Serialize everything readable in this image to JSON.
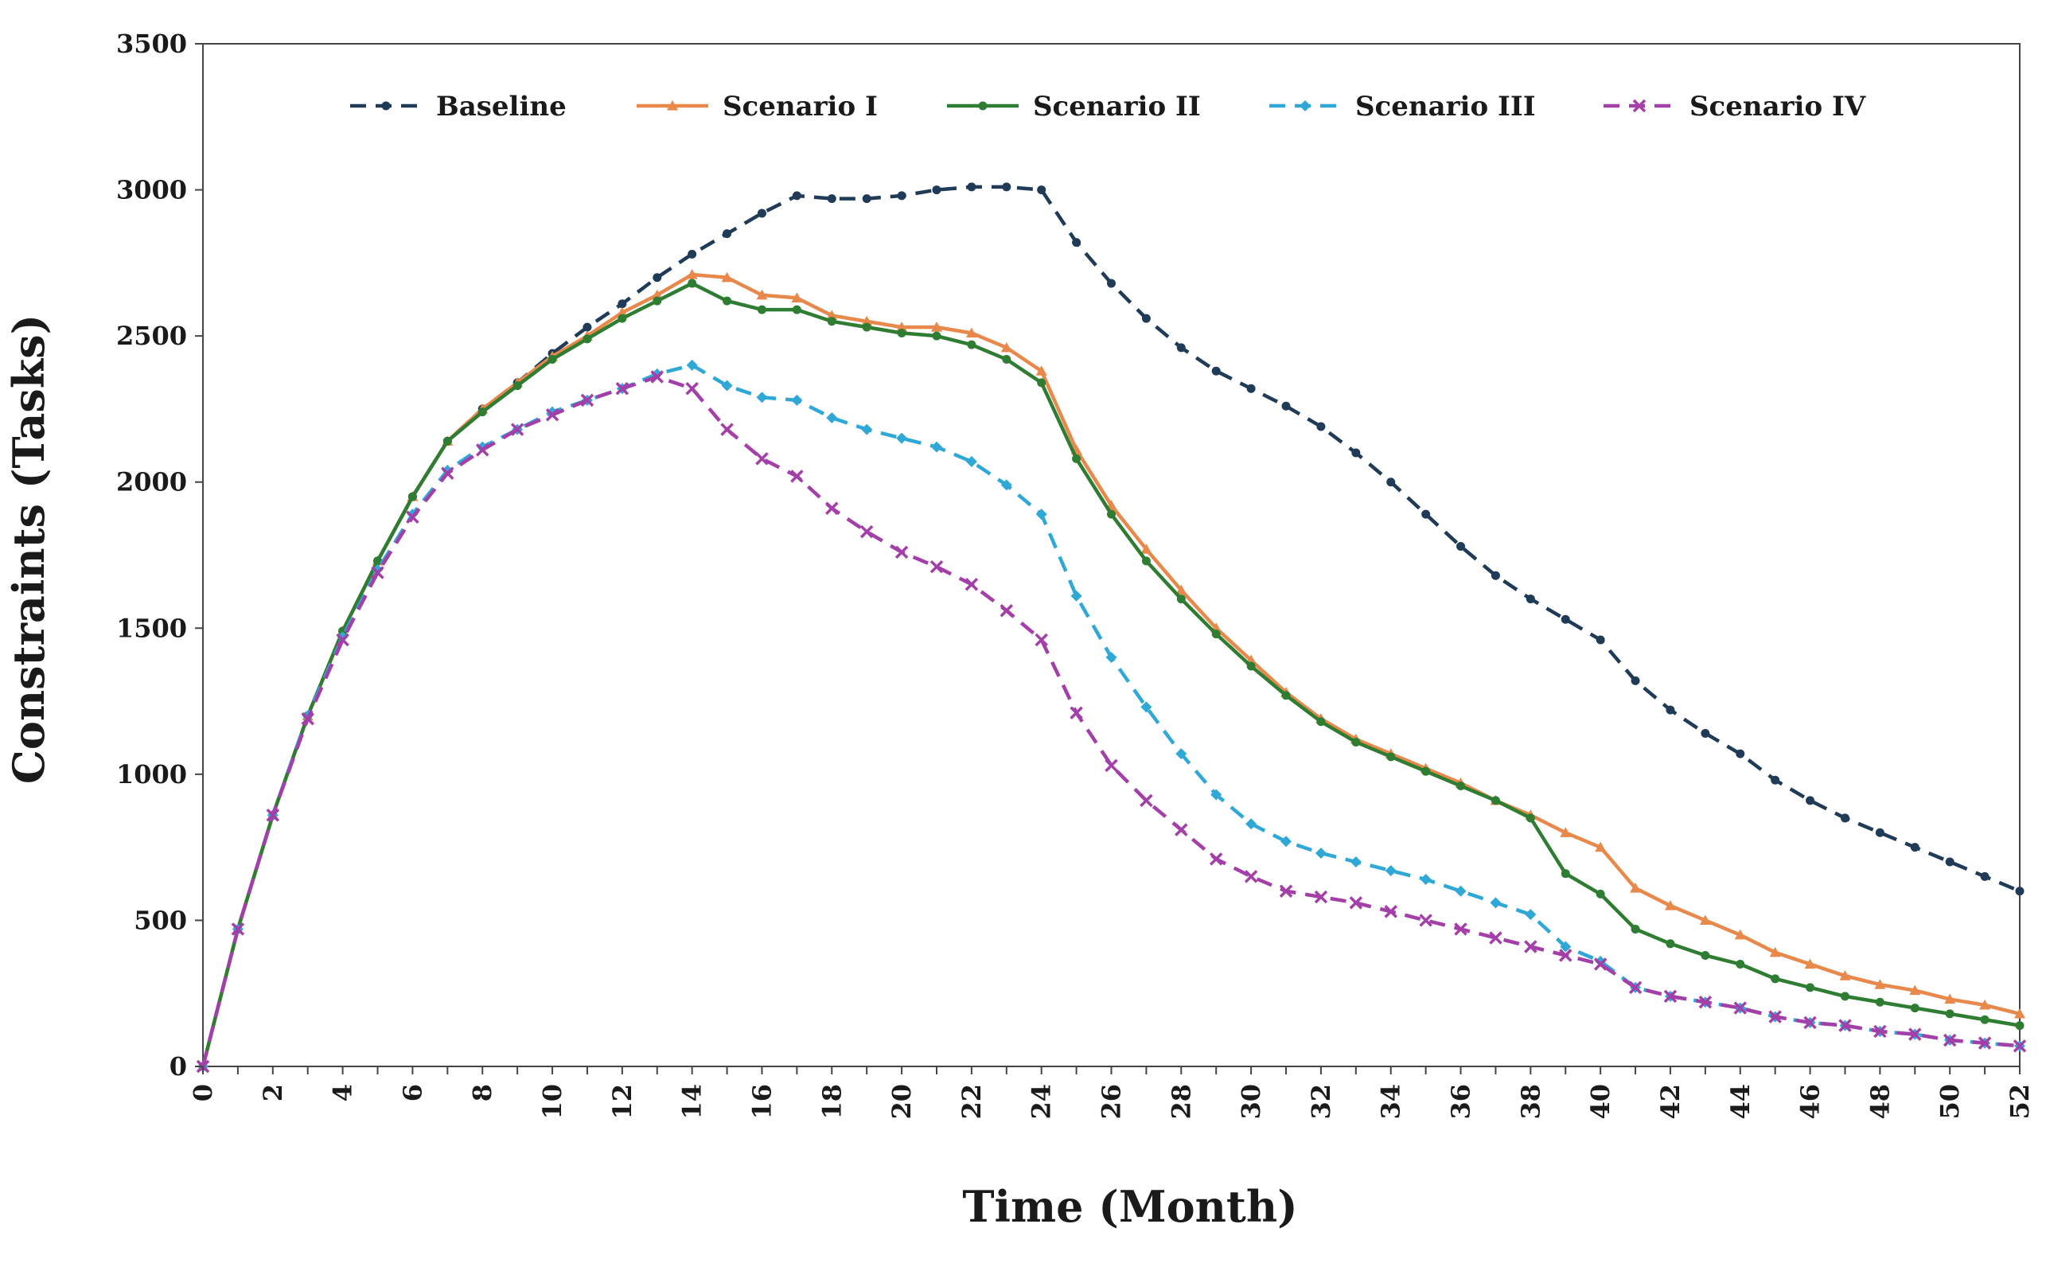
{
  "chart_data": {
    "type": "line",
    "xlabel": "Time (Month)",
    "ylabel": "Constraints (Tasks)",
    "xlim": [
      0,
      52
    ],
    "ylim": [
      0,
      3500
    ],
    "xticks": [
      "0",
      "2",
      "4",
      "6",
      "8",
      "10",
      "12",
      "14",
      "16",
      "18",
      "20",
      "22",
      "24",
      "26",
      "28",
      "30",
      "32",
      "34",
      "36",
      "38",
      "40",
      "42",
      "44",
      "46",
      "48",
      "50",
      "52"
    ],
    "yticks": [
      "0",
      "500",
      "1000",
      "1500",
      "2000",
      "2500",
      "3000",
      "3500"
    ],
    "grid": false,
    "legend": "top",
    "x": [
      0,
      1,
      2,
      3,
      4,
      5,
      6,
      7,
      8,
      9,
      10,
      11,
      12,
      13,
      14,
      15,
      16,
      17,
      18,
      19,
      20,
      21,
      22,
      23,
      24,
      25,
      26,
      27,
      28,
      29,
      30,
      31,
      32,
      33,
      34,
      35,
      36,
      37,
      38,
      39,
      40,
      41,
      42,
      43,
      44,
      45,
      46,
      47,
      48,
      49,
      50,
      51,
      52
    ],
    "series": [
      {
        "name": "Baseline",
        "color": "#1f3b57",
        "dash": "dashed",
        "marker": "dot",
        "values": [
          0,
          470,
          860,
          1200,
          1490,
          1730,
          1950,
          2140,
          2250,
          2340,
          2440,
          2530,
          2610,
          2700,
          2780,
          2850,
          2920,
          2980,
          2970,
          2970,
          2980,
          3000,
          3010,
          3010,
          3000,
          2820,
          2680,
          2560,
          2460,
          2380,
          2320,
          2260,
          2190,
          2100,
          2000,
          1890,
          1780,
          1680,
          1600,
          1530,
          1460,
          1320,
          1220,
          1140,
          1070,
          980,
          910,
          850,
          800,
          750,
          700,
          650,
          600
        ]
      },
      {
        "name": "Scenario I",
        "color": "#e8884a",
        "dash": "solid",
        "marker": "triangle",
        "values": [
          0,
          470,
          860,
          1200,
          1490,
          1730,
          1950,
          2140,
          2250,
          2340,
          2430,
          2500,
          2580,
          2640,
          2710,
          2700,
          2640,
          2630,
          2570,
          2550,
          2530,
          2530,
          2510,
          2460,
          2380,
          2110,
          1920,
          1770,
          1630,
          1500,
          1390,
          1280,
          1190,
          1120,
          1070,
          1020,
          970,
          910,
          860,
          800,
          750,
          610,
          550,
          500,
          450,
          390,
          350,
          310,
          280,
          260,
          230,
          210,
          180
        ]
      },
      {
        "name": "Scenario II",
        "color": "#2e7d32",
        "dash": "solid",
        "marker": "dot",
        "values": [
          0,
          470,
          860,
          1200,
          1490,
          1730,
          1950,
          2140,
          2240,
          2330,
          2420,
          2490,
          2560,
          2620,
          2680,
          2620,
          2590,
          2590,
          2550,
          2530,
          2510,
          2500,
          2470,
          2420,
          2340,
          2080,
          1890,
          1730,
          1600,
          1480,
          1370,
          1270,
          1180,
          1110,
          1060,
          1010,
          960,
          910,
          850,
          660,
          590,
          470,
          420,
          380,
          350,
          300,
          270,
          240,
          220,
          200,
          180,
          160,
          140
        ]
      },
      {
        "name": "Scenario III",
        "color": "#2fa8d8",
        "dash": "dashed",
        "marker": "diamond",
        "values": [
          0,
          470,
          860,
          1200,
          1470,
          1700,
          1890,
          2040,
          2120,
          2180,
          2240,
          2280,
          2320,
          2370,
          2400,
          2330,
          2290,
          2280,
          2220,
          2180,
          2150,
          2120,
          2070,
          1990,
          1890,
          1610,
          1400,
          1230,
          1070,
          930,
          830,
          770,
          730,
          700,
          670,
          640,
          600,
          560,
          520,
          410,
          360,
          270,
          240,
          220,
          200,
          170,
          150,
          140,
          120,
          110,
          90,
          80,
          70
        ]
      },
      {
        "name": "Scenario IV",
        "color": "#a43ea8",
        "dash": "dashed",
        "marker": "cross",
        "values": [
          0,
          470,
          860,
          1190,
          1460,
          1690,
          1880,
          2030,
          2110,
          2180,
          2230,
          2280,
          2320,
          2360,
          2320,
          2180,
          2080,
          2020,
          1910,
          1830,
          1760,
          1710,
          1650,
          1560,
          1460,
          1210,
          1030,
          910,
          810,
          710,
          650,
          600,
          580,
          560,
          530,
          500,
          470,
          440,
          410,
          380,
          350,
          270,
          240,
          220,
          200,
          170,
          150,
          140,
          120,
          110,
          90,
          80,
          70
        ]
      }
    ]
  }
}
